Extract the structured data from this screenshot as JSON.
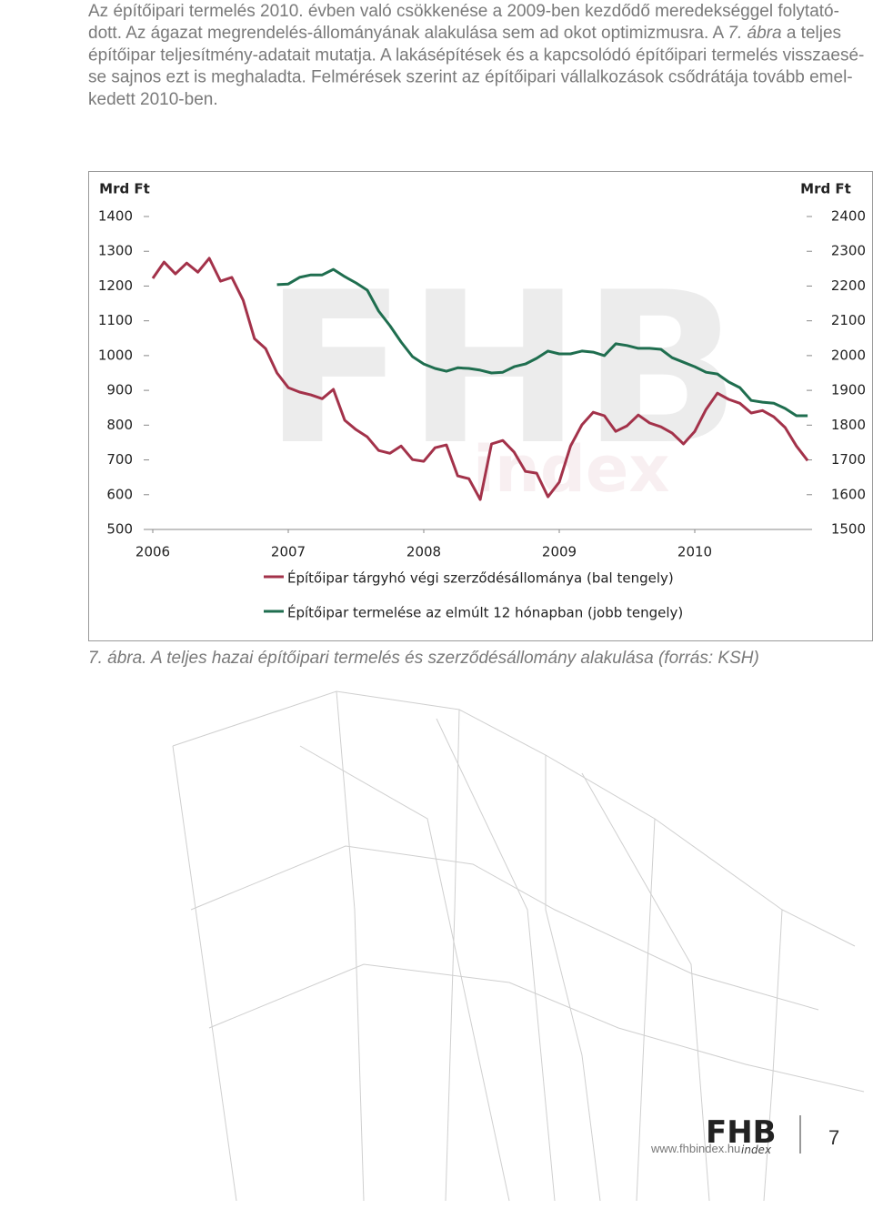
{
  "body": {
    "lines": [
      [
        "Az építőipari termelés 2010. évben való csökkenése a 2009-ben kezdődő meredekséggel folytató-"
      ],
      [
        "dott. Az ágazat megrendelés-állományának alakulása sem ad okot optimizmusra. A ",
        "7. ábra",
        " a teljes"
      ],
      [
        "építőipar teljesítmény-adatait mutatja. A lakásépítések és a kapcsolódó építőipari termelés visszaesé-"
      ],
      [
        "se sajnos ezt is meghaladta. Felmérések szerint az építőipari vállalkozások csődrátája tovább emel-"
      ],
      [
        "kedett 2010-ben."
      ]
    ]
  },
  "chart_data": {
    "type": "line",
    "y_unit": "Mrd Ft",
    "y2_unit": "Mrd Ft",
    "x": [
      2006,
      2006.083,
      2006.167,
      2006.25,
      2006.333,
      2006.417,
      2006.5,
      2006.583,
      2006.667,
      2006.75,
      2006.833,
      2006.917,
      2007,
      2007.083,
      2007.167,
      2007.25,
      2007.333,
      2007.417,
      2007.5,
      2007.583,
      2007.667,
      2007.75,
      2007.833,
      2007.917,
      2008,
      2008.083,
      2008.167,
      2008.25,
      2008.333,
      2008.417,
      2008.5,
      2008.583,
      2008.667,
      2008.75,
      2008.833,
      2008.917,
      2009,
      2009.083,
      2009.167,
      2009.25,
      2009.333,
      2009.417,
      2009.5,
      2009.583,
      2009.667,
      2009.75,
      2009.833,
      2009.917,
      2010,
      2010.083,
      2010.167,
      2010.25,
      2010.333,
      2010.417,
      2010.5,
      2010.583,
      2010.667,
      2010.75,
      2010.833
    ],
    "xlim": [
      2006,
      2011
    ],
    "xticks": [
      2006,
      2007,
      2008,
      2009,
      2010
    ],
    "ylim": [
      500,
      1400
    ],
    "yticks": [
      500,
      600,
      700,
      800,
      900,
      1000,
      1100,
      1200,
      1300,
      1400
    ],
    "y2lim": [
      1500,
      2400
    ],
    "y2ticks": [
      1500,
      1600,
      1700,
      1800,
      1900,
      2000,
      2100,
      2200,
      2300,
      2400
    ],
    "series": [
      {
        "name": "Építőipar tárgyhó végi szerződésállománya (bal tengely)",
        "color": "#a3324a",
        "values": [
          1222,
          1269,
          1235,
          1266,
          1240,
          1280,
          1214,
          1225,
          1159,
          1049,
          1020,
          950,
          908,
          895,
          887,
          876,
          903,
          814,
          787,
          766,
          727,
          719,
          740,
          701,
          696,
          735,
          743,
          654,
          646,
          586,
          746,
          756,
          722,
          667,
          662,
          594,
          636,
          740,
          801,
          837,
          827,
          782,
          798,
          829,
          806,
          795,
          777,
          746,
          782,
          845,
          892,
          874,
          863,
          835,
          842,
          824,
          793,
          740,
          698
        ]
      },
      {
        "name": "Építőipar termelése az elmúlt 12 hónapban (jobb tengely)",
        "color": "#1f6e4f",
        "axis": "y2",
        "values": [
          null,
          null,
          null,
          null,
          null,
          null,
          null,
          null,
          null,
          null,
          null,
          2204,
          2206,
          2225,
          2232,
          2232,
          2248,
          2227,
          2209,
          2188,
          2128,
          2086,
          2039,
          1997,
          1976,
          1963,
          1955,
          1965,
          1963,
          1958,
          1950,
          1952,
          1968,
          1976,
          1992,
          2013,
          2005,
          2005,
          2013,
          2010,
          2000,
          2034,
          2029,
          2021,
          2021,
          2018,
          1994,
          1981,
          1968,
          1952,
          1947,
          1924,
          1908,
          1871,
          1866,
          1863,
          1848,
          1827,
          1827
        ]
      }
    ]
  },
  "caption": "7. ábra. A teljes hazai építőipari termelés és szerződésállomány alakulása (forrás: KSH)",
  "footer": {
    "url": "www.fhbindex.hu",
    "logo": "FHB",
    "logo_sub": "index",
    "page": "7"
  }
}
